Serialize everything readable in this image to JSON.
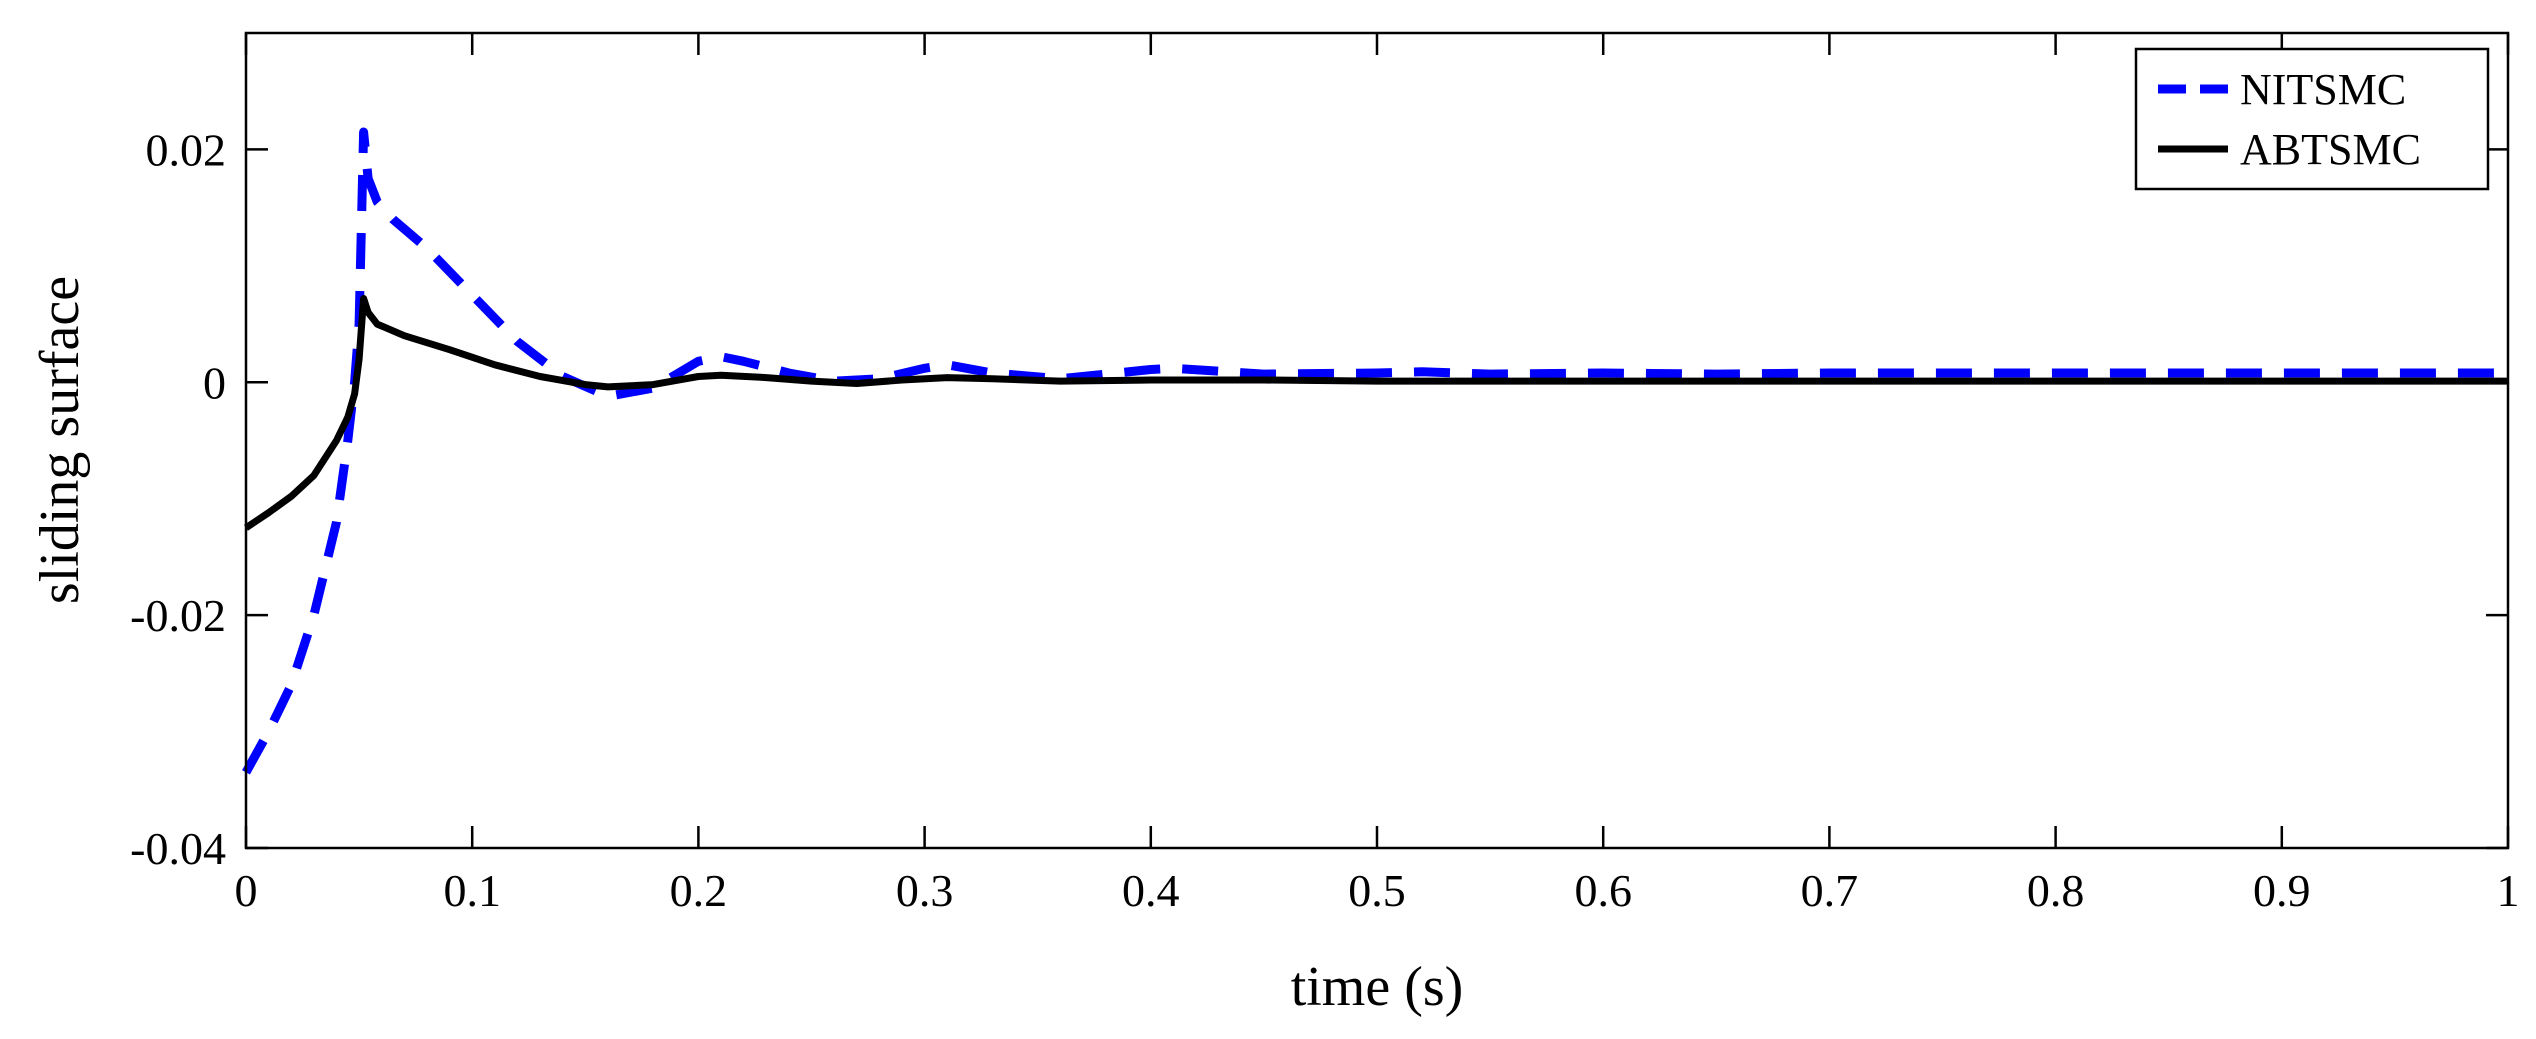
{
  "chart_data": {
    "type": "line",
    "title": "",
    "xlabel": "time (s)",
    "ylabel": "sliding surface",
    "xlim": [
      0,
      1
    ],
    "ylim": [
      -0.04,
      0.03
    ],
    "xticks": [
      0,
      0.1,
      0.2,
      0.3,
      0.4,
      0.5,
      0.6,
      0.7,
      0.8,
      0.9,
      1
    ],
    "xtick_labels": [
      "0",
      "0.1",
      "0.2",
      "0.3",
      "0.4",
      "0.5",
      "0.6",
      "0.7",
      "0.8",
      "0.9",
      "1"
    ],
    "yticks": [
      -0.04,
      -0.02,
      0,
      0.02
    ],
    "ytick_labels": [
      "-0.04",
      "-0.02",
      "0",
      "0.02"
    ],
    "grid": false,
    "legend_position": "top-right",
    "series": [
      {
        "name": "NITSMC",
        "color": "#0000ff",
        "style": "dashed",
        "x": [
          0,
          0.01,
          0.02,
          0.03,
          0.04,
          0.045,
          0.048,
          0.05,
          0.052,
          0.054,
          0.058,
          0.065,
          0.08,
          0.1,
          0.12,
          0.14,
          0.16,
          0.18,
          0.2,
          0.21,
          0.22,
          0.24,
          0.26,
          0.28,
          0.3,
          0.31,
          0.33,
          0.36,
          0.4,
          0.41,
          0.45,
          0.5,
          0.52,
          0.55,
          0.6,
          0.65,
          0.7,
          0.75,
          0.8,
          0.85,
          0.9,
          0.95,
          1
        ],
        "y": [
          -0.0335,
          -0.03,
          -0.026,
          -0.02,
          -0.012,
          -0.005,
          0,
          0.005,
          0.0215,
          0.0175,
          0.0155,
          0.014,
          0.0115,
          0.0075,
          0.0035,
          0.0005,
          -0.0012,
          -0.0005,
          0.0018,
          0.0022,
          0.0018,
          0.0008,
          0.0001,
          0.0003,
          0.0012,
          0.0015,
          0.0008,
          0.0003,
          0.0011,
          0.0012,
          0.0007,
          0.0008,
          0.0009,
          0.0007,
          0.0008,
          0.0007,
          0.0008,
          0.0008,
          0.0008,
          0.0008,
          0.0008,
          0.0008,
          0.0008
        ]
      },
      {
        "name": "ABTSMC",
        "color": "#000000",
        "style": "solid",
        "x": [
          0,
          0.01,
          0.02,
          0.03,
          0.04,
          0.045,
          0.048,
          0.05,
          0.052,
          0.054,
          0.058,
          0.07,
          0.09,
          0.11,
          0.13,
          0.15,
          0.16,
          0.18,
          0.2,
          0.21,
          0.23,
          0.25,
          0.27,
          0.29,
          0.31,
          0.33,
          0.36,
          0.4,
          0.45,
          0.5,
          0.6,
          0.7,
          0.8,
          0.9,
          1
        ],
        "y": [
          -0.0125,
          -0.0112,
          -0.0098,
          -0.008,
          -0.005,
          -0.003,
          -0.001,
          0.002,
          0.0072,
          0.006,
          0.005,
          0.004,
          0.0028,
          0.0015,
          0.0005,
          -0.0002,
          -0.0004,
          -0.0002,
          0.0005,
          0.0006,
          0.0004,
          0.0001,
          -0.0001,
          0.0002,
          0.0004,
          0.0003,
          0.0001,
          0.0002,
          0.0002,
          0.0001,
          0.0001,
          0.0001,
          0.0001,
          0.0001,
          0.0001
        ]
      }
    ]
  }
}
